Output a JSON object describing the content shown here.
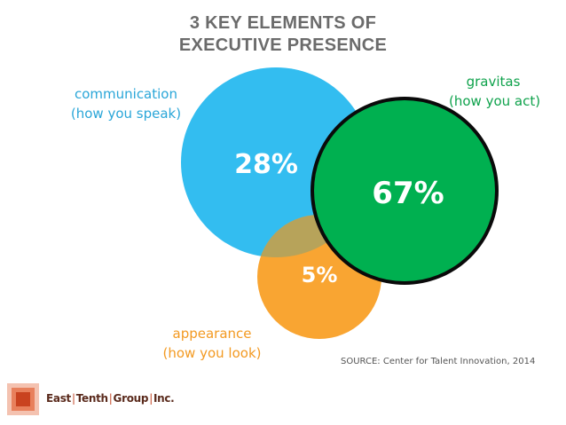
{
  "title": {
    "line1": "3 KEY ELEMENTS OF",
    "line2": "EXECUTIVE PRESENCE"
  },
  "elements": {
    "communication": {
      "name": "communication",
      "description": "(how you speak)",
      "percent": "28%",
      "color": "#33bdf0"
    },
    "gravitas": {
      "name": "gravitas",
      "description": "(how you act)",
      "percent": "67%",
      "color": "#00b050"
    },
    "appearance": {
      "name": "appearance",
      "description": "(how you look)",
      "percent": "5%",
      "color": "#f9a532"
    }
  },
  "source": "SOURCE: Center for Talent Innovation, 2014",
  "logo": {
    "part1": "East",
    "part2": "Tenth",
    "part3": "Group",
    "part4": "Inc."
  }
}
